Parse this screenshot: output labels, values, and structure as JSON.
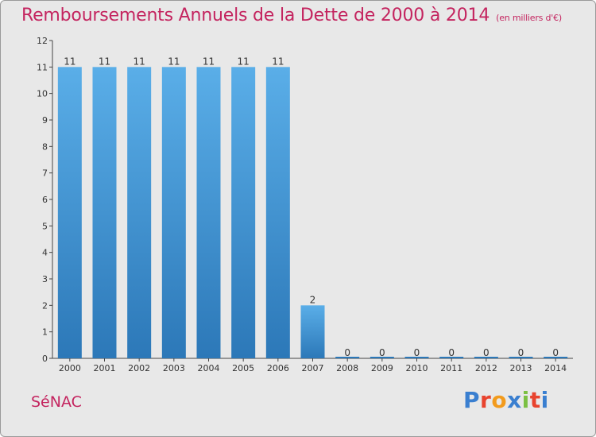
{
  "page": {
    "title": "Remboursements Annuels de la Dette de 2000 à 2014",
    "subtitle": "(en milliers d'€)",
    "commune": "SéNAC",
    "logo_text": "Proxiti",
    "colors": {
      "title": "#c4245f",
      "bar_light": "#5aaee8",
      "bar_dark": "#2c78b8",
      "background": "#e8e8e8",
      "logo": [
        "#3a7fd0",
        "#e8432e",
        "#f29b1d",
        "#3a7fd0",
        "#7bc043",
        "#e8432e",
        "#3a7fd0"
      ]
    }
  },
  "chart_data": {
    "type": "bar",
    "title": "Remboursements Annuels de la Dette de 2000 à 2014",
    "subtitle": "(en milliers d'€)",
    "xlabel": "",
    "ylabel": "",
    "categories": [
      "2000",
      "2001",
      "2002",
      "2003",
      "2004",
      "2005",
      "2006",
      "2007",
      "2008",
      "2009",
      "2010",
      "2011",
      "2012",
      "2013",
      "2014"
    ],
    "values": [
      11,
      11,
      11,
      11,
      11,
      11,
      11,
      2,
      0,
      0,
      0,
      0,
      0,
      0,
      0
    ],
    "data_labels": [
      "11",
      "11",
      "11",
      "11",
      "11",
      "11",
      "11",
      "2",
      "0",
      "0",
      "0",
      "0",
      "0",
      "0",
      "0"
    ],
    "ylim": [
      0,
      12
    ],
    "yticks": [
      "0",
      "1",
      "2",
      "3",
      "4",
      "5",
      "6",
      "7",
      "8",
      "9",
      "10",
      "11",
      "12"
    ],
    "grid": false,
    "legend": "none"
  }
}
